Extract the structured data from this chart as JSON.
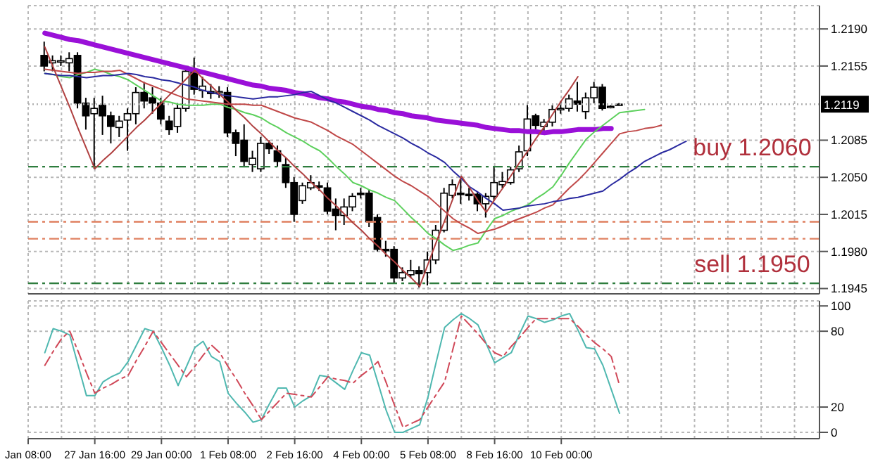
{
  "chart_data": [
    {
      "type": "candlestick",
      "ohlc": [
        null,
        null,
        [
          1.2165,
          1.2178,
          1.215,
          1.2155
        ],
        [
          1.2158,
          1.2165,
          1.215,
          1.216
        ],
        [
          1.2159,
          1.2165,
          1.2155,
          1.216
        ],
        [
          1.2158,
          1.2168,
          1.215,
          1.2162
        ],
        [
          1.2165,
          1.2168,
          1.2115,
          1.212
        ],
        [
          1.212,
          1.2125,
          1.2095,
          1.2108
        ],
        [
          1.211,
          1.2125,
          1.2058,
          1.2115
        ],
        [
          1.2118,
          1.2127,
          1.209,
          1.2108
        ],
        [
          1.2108,
          1.2112,
          1.2082,
          1.2098
        ],
        [
          1.2097,
          1.2108,
          1.2088,
          1.2103
        ],
        [
          1.2104,
          1.2115,
          1.2075,
          1.211
        ],
        [
          1.211,
          1.2135,
          1.21,
          1.213
        ],
        [
          1.213,
          1.214,
          1.2115,
          1.2122
        ],
        [
          1.2125,
          1.2135,
          1.211,
          1.212
        ],
        [
          1.212,
          1.2125,
          1.21,
          1.2105
        ],
        [
          1.2103,
          1.2108,
          1.209,
          1.2095
        ],
        [
          1.2098,
          1.212,
          1.2092,
          1.2115
        ],
        [
          1.2115,
          1.2155,
          1.2112,
          1.215
        ],
        [
          1.215,
          1.2163,
          1.2128,
          1.2133
        ],
        [
          1.2132,
          1.2145,
          1.2125,
          1.2136
        ],
        [
          1.2131,
          1.2138,
          1.2124,
          1.2129
        ],
        [
          1.213,
          1.2136,
          1.2125,
          1.2131
        ],
        [
          1.213,
          1.2135,
          1.2088,
          1.2092
        ],
        [
          1.2092,
          1.2095,
          1.207,
          1.2082
        ],
        [
          1.2085,
          1.21,
          1.206,
          1.2065
        ],
        [
          1.2062,
          1.2075,
          1.2055,
          1.2068
        ],
        [
          1.2058,
          1.2088,
          1.2055,
          1.2082
        ],
        [
          1.2082,
          1.2085,
          1.2072,
          1.2077
        ],
        [
          1.2075,
          1.208,
          1.206,
          1.2065
        ],
        [
          1.2062,
          1.2068,
          1.204,
          1.2045
        ],
        [
          1.2045,
          1.205,
          1.2008,
          1.2015
        ],
        [
          1.2028,
          1.2045,
          1.2025,
          1.2042
        ],
        [
          1.204,
          1.2052,
          1.2038,
          1.2045
        ],
        [
          1.2042,
          1.2046,
          1.2037,
          1.2041
        ],
        [
          1.204,
          1.2045,
          1.2015,
          1.2018
        ],
        [
          1.202,
          1.203,
          1.2,
          1.2014
        ],
        [
          1.2014,
          1.203,
          1.2005,
          1.2022
        ],
        [
          1.2022,
          1.2035,
          1.2018,
          1.2032
        ],
        [
          1.2035,
          1.204,
          1.203,
          1.2034
        ],
        [
          1.2035,
          1.2038,
          1.2003,
          1.2008
        ],
        [
          1.2012,
          1.2015,
          1.198,
          1.1982
        ],
        [
          1.1982,
          1.199,
          1.1975,
          1.1981
        ],
        [
          1.1982,
          1.1985,
          1.195,
          1.1955
        ],
        [
          1.1955,
          1.1965,
          1.1952,
          1.196
        ],
        [
          1.1958,
          1.1972,
          1.1955,
          1.1962
        ],
        [
          1.1962,
          1.1966,
          1.1946,
          1.1959
        ],
        [
          1.196,
          1.198,
          1.1948,
          1.1972
        ],
        [
          1.1972,
          1.2005,
          1.1968,
          1.2
        ],
        [
          1.2,
          1.204,
          1.1998,
          1.2035
        ],
        [
          1.2033,
          1.2048,
          1.203,
          1.2043
        ],
        [
          1.2035,
          1.205,
          1.2025,
          1.2034
        ],
        [
          1.2034,
          1.204,
          1.2028,
          1.2033
        ],
        [
          1.2034,
          1.2036,
          1.2018,
          1.2025
        ],
        [
          1.2025,
          1.2035,
          1.2012,
          1.2032
        ],
        [
          1.2032,
          1.206,
          1.2028,
          1.2045
        ],
        [
          1.2043,
          1.2055,
          1.204,
          1.2046
        ],
        [
          1.2045,
          1.206,
          1.2043,
          1.2057
        ],
        [
          1.2058,
          1.208,
          1.2055,
          1.2074
        ],
        [
          1.2075,
          1.212,
          1.207,
          1.2105
        ],
        [
          1.2108,
          1.211,
          1.2095,
          1.2099
        ],
        [
          1.2098,
          1.2105,
          1.209,
          1.2102
        ],
        [
          1.2102,
          1.2118,
          1.2098,
          1.2114
        ],
        [
          1.2114,
          1.2122,
          1.211,
          1.2115
        ],
        [
          1.2115,
          1.2128,
          1.2112,
          1.2124
        ],
        [
          1.2122,
          1.214,
          1.2112,
          1.2119
        ],
        [
          1.2112,
          1.213,
          1.2105,
          1.2125
        ],
        [
          1.2125,
          1.214,
          1.212,
          1.2135
        ],
        [
          1.2135,
          1.2138,
          1.2113,
          1.2115
        ],
        [
          1.2116,
          1.2118,
          1.2115,
          1.2117
        ],
        [
          1.2119,
          1.212,
          1.2118,
          1.2119
        ],
        null,
        null,
        null,
        null,
        null,
        null,
        null,
        null,
        null,
        null,
        null,
        null,
        null,
        null,
        null,
        null,
        null,
        null,
        null,
        null,
        null,
        null,
        null,
        null
      ],
      "series": [
        {
          "type": "line",
          "color": "#9a10d8",
          "values": [
            null,
            null,
            1.2186,
            1.2184,
            1.2182,
            1.218,
            1.2179,
            1.2177,
            1.2175,
            1.2173,
            1.2171,
            1.2169,
            1.2167,
            1.2165,
            1.2163,
            1.2161,
            1.2159,
            1.2157,
            1.2155,
            1.2153,
            1.2151,
            1.2149,
            1.2147,
            1.2145,
            1.2143,
            1.2141,
            1.2139,
            1.2137,
            1.2136,
            1.2134,
            1.2133,
            1.2132,
            1.213,
            1.2129,
            1.2127,
            1.2125,
            1.2124,
            1.2122,
            1.2121,
            1.2119,
            1.2117,
            1.2116,
            1.2114,
            1.2113,
            1.2111,
            1.211,
            1.2108,
            1.2107,
            1.2106,
            1.2104,
            1.2103,
            1.2102,
            1.2101,
            1.21,
            1.2099,
            1.2097,
            1.2096,
            1.2095,
            1.2094,
            1.2094,
            1.2093,
            1.2093,
            1.2092,
            1.2093,
            1.2093,
            1.2094,
            1.2095,
            1.2095,
            1.2095,
            1.2096,
            1.2096,
            null,
            null,
            null,
            null,
            null,
            null,
            null,
            null,
            null,
            null,
            null,
            null,
            null,
            null,
            null,
            null,
            null,
            null,
            null,
            null,
            null,
            null,
            null,
            null,
            null
          ]
        },
        {
          "type": "line",
          "color": "#5cd05c",
          "values": [
            null,
            null,
            1.2148,
            1.2147,
            1.2145,
            1.2144,
            1.2147,
            1.2149,
            1.2152,
            1.215,
            1.2147,
            1.2145,
            1.2142,
            1.2137,
            1.2132,
            1.2127,
            1.2122,
            1.2121,
            1.2119,
            1.2118,
            1.2118,
            1.2118,
            1.2119,
            1.2119,
            1.2116,
            1.2114,
            1.2111,
            1.2109,
            1.2106,
            1.2101,
            1.2097,
            1.2092,
            1.2088,
            1.2084,
            1.2079,
            1.2075,
            1.2068,
            1.206,
            1.2053,
            1.2045,
            1.2042,
            1.2038,
            1.2035,
            1.2031,
            1.2028,
            1.202,
            1.2012,
            1.2005,
            1.1997,
            1.1992,
            1.1986,
            1.1981,
            1.1983,
            1.1986,
            1.1988,
            1.2,
            1.2011,
            1.2014,
            1.2018,
            1.2021,
            1.2024,
            1.203,
            1.2035,
            1.2041,
            1.2052,
            1.2064,
            1.2075,
            1.2086,
            1.2093,
            1.2099,
            1.2105,
            1.2111,
            1.2112,
            1.2113,
            1.2114,
            null,
            null,
            null,
            null,
            null,
            null,
            null,
            null,
            null,
            null,
            null,
            null,
            null,
            null,
            null,
            null,
            null,
            null,
            null,
            null,
            null
          ]
        },
        {
          "type": "line",
          "color": "#c04848",
          "values": [
            null,
            null,
            1.2152,
            1.2151,
            1.215,
            1.2149,
            1.2148,
            1.2149,
            1.2149,
            1.215,
            1.215,
            1.2151,
            1.2147,
            1.2143,
            1.2139,
            1.2136,
            1.2133,
            1.213,
            1.2127,
            1.2124,
            1.2123,
            1.2122,
            1.2121,
            1.212,
            1.2119,
            1.2119,
            1.2119,
            1.2118,
            1.2118,
            1.2115,
            1.2112,
            1.2109,
            1.2106,
            1.2104,
            1.2102,
            1.2098,
            1.2094,
            1.2089,
            1.2085,
            1.2081,
            1.2075,
            1.2069,
            1.2063,
            1.2057,
            1.2051,
            1.2046,
            1.2042,
            1.2037,
            1.2032,
            1.2025,
            1.2018,
            1.2011,
            1.2006,
            1.2002,
            1.1997,
            1.1999,
            1.2001,
            1.2004,
            1.2008,
            1.2011,
            1.2014,
            1.2017,
            1.2021,
            1.2024,
            1.2032,
            1.204,
            1.2047,
            1.2055,
            1.2064,
            1.2073,
            1.2082,
            1.2091,
            1.2093,
            1.2094,
            1.2096,
            1.2097,
            1.2099,
            null,
            null,
            null,
            null,
            null,
            null,
            null,
            null,
            null,
            null,
            null,
            null,
            null,
            null,
            null,
            null,
            null,
            null,
            null
          ]
        },
        {
          "type": "line",
          "color": "#2a2aa0",
          "values": [
            null,
            null,
            1.2148,
            1.2147,
            1.2146,
            1.2146,
            1.2145,
            1.2144,
            1.2145,
            1.2146,
            1.2146,
            1.2147,
            1.2148,
            1.2147,
            1.2145,
            1.2144,
            1.2142,
            1.2141,
            1.2139,
            1.2137,
            1.2135,
            1.2132,
            1.213,
            1.2128,
            1.2127,
            1.2126,
            1.2125,
            1.2124,
            1.2125,
            1.2126,
            1.2126,
            1.2127,
            1.2128,
            1.213,
            1.2131,
            1.2127,
            1.2123,
            1.212,
            1.2116,
            1.2112,
            1.2108,
            1.2104,
            1.2099,
            1.2095,
            1.2091,
            1.2087,
            1.2082,
            1.2078,
            1.2073,
            1.2069,
            1.2064,
            1.2056,
            1.2049,
            1.2041,
            1.2036,
            1.203,
            1.2025,
            1.2019,
            1.202,
            1.2021,
            1.2023,
            1.2024,
            1.2025,
            1.2027,
            1.2028,
            1.203,
            1.2031,
            1.2033,
            1.2035,
            1.2037,
            1.2043,
            1.2048,
            1.2054,
            1.2059,
            1.2065,
            1.2069,
            1.2073,
            1.2076,
            1.208,
            1.2084,
            null,
            null,
            null,
            null,
            null,
            null,
            null,
            null,
            null,
            null,
            null,
            null,
            null,
            null,
            null,
            null
          ]
        },
        {
          "type": "line",
          "color": "#b04040",
          "values": [
            null,
            null,
            1.2173,
            1.2154,
            1.2135,
            1.2116,
            1.2096,
            1.2077,
            1.2058,
            1.2066,
            1.2073,
            1.2081,
            1.2089,
            1.2097,
            1.2104,
            1.2112,
            1.212,
            1.2128,
            1.2135,
            1.2143,
            1.2151,
            1.2143,
            1.2136,
            1.2128,
            1.2121,
            1.2113,
            1.2106,
            1.2098,
            1.2091,
            1.2083,
            1.2075,
            1.2068,
            1.206,
            1.2053,
            1.2045,
            1.2038,
            1.203,
            1.2023,
            1.2015,
            1.2007,
            1.2,
            1.1992,
            1.1985,
            1.1977,
            1.197,
            1.1962,
            1.1955,
            1.1947,
            1.1968,
            1.1989,
            1.2009,
            1.203,
            1.2051,
            1.204,
            1.2028,
            1.2017,
            1.2029,
            1.204,
            1.2052,
            1.2064,
            1.2075,
            1.2087,
            1.2098,
            1.211,
            1.2122,
            1.2133,
            1.2145,
            null,
            null,
            null,
            null,
            null,
            null,
            null,
            null,
            null,
            null,
            null,
            null,
            null,
            null,
            null,
            null,
            null,
            null,
            null,
            null,
            null,
            null,
            null,
            null,
            null,
            null,
            null,
            null,
            null
          ]
        }
      ],
      "ref_lines": [
        {
          "axis": "y",
          "value": 1.206,
          "label": "buy 1.2060",
          "color": "#2e7d3e",
          "line_style": "dashed"
        },
        {
          "axis": "y",
          "value": 1.2008,
          "label": null,
          "color": "#e08060",
          "line_style": "dashed"
        },
        {
          "axis": "y",
          "value": 1.1992,
          "label": null,
          "color": "#e08060",
          "line_style": "dashed"
        },
        {
          "axis": "y",
          "value": 1.195,
          "label": "sell 1.1950",
          "color": "#2e7d3e",
          "line_style": "dashed"
        },
        {
          "axis": "y",
          "value": 1.2119,
          "label": "1.2119",
          "color": "#b0b0b0",
          "line_style": "dotted"
        }
      ],
      "ylim": [
        1.194,
        1.2212
      ],
      "yticks": [
        {
          "value": 1.219,
          "label": "1.2190"
        },
        1.2155,
        1.2085,
        {
          "value": 1.205,
          "label": "1.2050"
        },
        1.2015,
        {
          "value": 1.198,
          "label": "1.1980"
        },
        1.1945
      ],
      "grid": true,
      "legend": false,
      "tick_labels": "y"
    },
    {
      "type": "line",
      "categories": [
        "Jan 08:00",
        null,
        null,
        null,
        null,
        null,
        null,
        null,
        "27 Jan 16:00",
        null,
        null,
        null,
        null,
        null,
        null,
        null,
        "29 Jan 00:00",
        null,
        null,
        null,
        null,
        null,
        null,
        null,
        "1 Feb 08:00",
        null,
        null,
        null,
        null,
        null,
        null,
        null,
        "2 Feb 16:00",
        null,
        null,
        null,
        null,
        null,
        null,
        null,
        "4 Feb 00:00",
        null,
        null,
        null,
        null,
        null,
        null,
        null,
        "5 Feb 08:00",
        null,
        null,
        null,
        null,
        null,
        null,
        null,
        "8 Feb 16:00",
        null,
        null,
        null,
        null,
        null,
        null,
        null,
        "10 Feb 00:00",
        null,
        null,
        null,
        null,
        null,
        null,
        null,
        null,
        null,
        null,
        null,
        null,
        null,
        null,
        null,
        null,
        null,
        null,
        null,
        null,
        null,
        null,
        null,
        null,
        null,
        null,
        null,
        null,
        null,
        null,
        null
      ],
      "series": [
        {
          "color": "#4fb8b0",
          "line_style": "solid",
          "values": [
            null,
            null,
            63,
            82,
            80,
            77,
            53,
            29,
            29,
            40,
            44,
            47,
            56,
            69,
            82,
            80,
            67,
            53,
            37,
            52,
            67,
            72,
            60,
            56,
            31,
            23,
            16,
            8,
            10,
            23,
            35,
            35,
            20,
            25,
            29,
            45,
            44,
            39,
            34,
            49,
            63,
            61,
            39,
            17,
            0,
            0,
            3,
            6,
            28,
            56,
            83,
            89,
            94,
            90,
            85,
            70,
            55,
            59,
            63,
            78,
            92,
            90,
            87,
            89,
            92,
            94,
            81,
            67,
            66,
            53,
            34,
            15,
            null,
            null,
            null,
            null,
            null,
            null,
            null,
            null,
            null,
            null,
            null,
            null,
            null,
            null,
            null,
            null,
            null,
            null,
            null,
            null,
            null,
            null,
            null,
            null
          ]
        },
        {
          "color": "#d04858",
          "line_style": "dashed",
          "values": [
            null,
            null,
            53,
            64,
            74,
            80,
            64,
            47,
            31,
            35,
            38,
            42,
            45,
            57,
            68,
            80,
            71,
            62,
            53,
            44,
            52,
            61,
            69,
            63,
            52,
            42,
            31,
            21,
            10,
            17,
            24,
            31,
            30,
            29,
            28,
            36,
            44,
            42,
            41,
            39,
            45,
            50,
            56,
            39,
            21,
            4,
            7,
            10,
            20,
            30,
            40,
            66,
            92,
            85,
            78,
            70,
            63,
            60,
            68,
            75,
            83,
            90,
            90,
            90,
            90,
            90,
            84,
            77,
            71,
            66,
            60,
            37,
            null,
            null,
            null,
            null,
            null,
            null,
            null,
            null,
            null,
            null,
            null,
            null,
            null,
            null,
            null,
            null,
            null,
            null,
            null,
            null,
            null,
            null,
            null,
            null
          ]
        }
      ],
      "ylim": [
        -5,
        104
      ],
      "yticks": [
        0,
        20,
        80,
        100
      ],
      "grid": true,
      "legend": false,
      "marker": "none"
    }
  ]
}
